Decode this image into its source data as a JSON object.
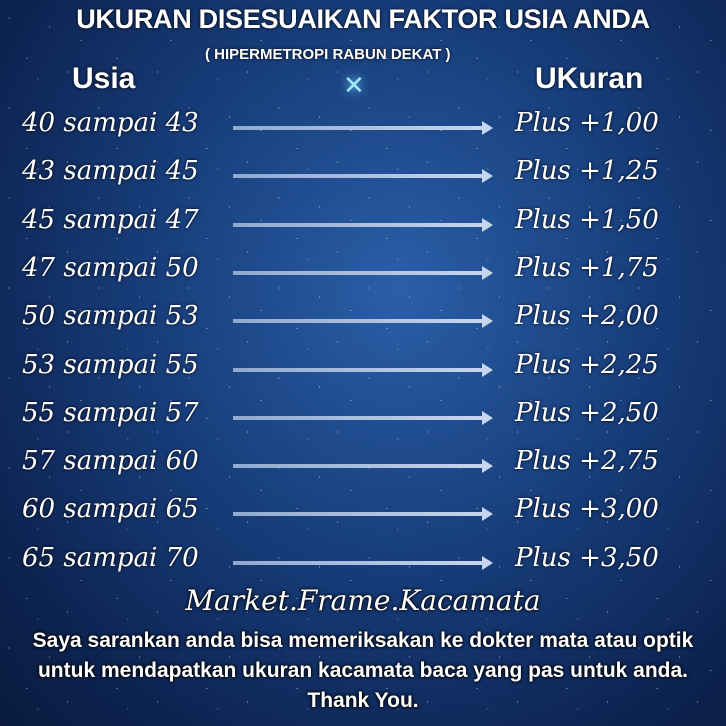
{
  "title": "UKURAN DISESUAIKAN FAKTOR USIA ANDA",
  "subtitle": "( HIPERMETROPI RABUN DEKAT )",
  "headers": {
    "left": "Usia",
    "right": "UKuran"
  },
  "rows": [
    {
      "age": "40 sampai 43",
      "size": "Plus +1,00"
    },
    {
      "age": "43 sampai 45",
      "size": "Plus +1,25"
    },
    {
      "age": "45 sampai 47",
      "size": "Plus +1,50"
    },
    {
      "age": "47 sampai 50",
      "size": "Plus +1,75"
    },
    {
      "age": "50 sampai 53",
      "size": "Plus +2,00"
    },
    {
      "age": "53 sampai 55",
      "size": "Plus +2,25"
    },
    {
      "age": "55 sampai 57",
      "size": "Plus +2,50"
    },
    {
      "age": "57 sampai 60",
      "size": "Plus +2,75"
    },
    {
      "age": "60 sampai 65",
      "size": "Plus +3,00"
    },
    {
      "age": "65 sampai 70",
      "size": "Plus +3,50"
    }
  ],
  "brand": "Market.Frame.Kacamata",
  "note": "Saya sarankan anda bisa memeriksakan ke dokter mata atau optik untuk mendapatkan ukuran kacamata baca yang pas untuk anda. Thank You."
}
